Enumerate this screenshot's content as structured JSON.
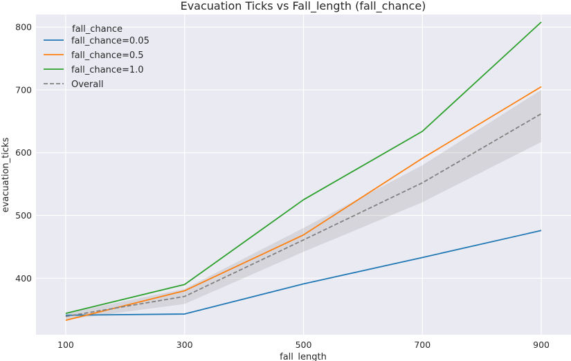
{
  "chart_data": {
    "type": "line",
    "title": "Evacuation Ticks vs Fall_length (fall_chance)",
    "xlabel": "fall_length",
    "ylabel": "evacuation_ticks",
    "x": [
      100,
      300,
      500,
      700,
      900
    ],
    "xlim": [
      50,
      950
    ],
    "ylim": [
      310,
      820
    ],
    "xticks": [
      "100",
      "300",
      "500",
      "700",
      "900"
    ],
    "yticks": [
      "400",
      "500",
      "600",
      "700",
      "800"
    ],
    "grid": true,
    "legend": {
      "title": "fall_chance",
      "placement": "top-left"
    },
    "series": [
      {
        "name": "fall_chance=0.05",
        "color": "#1f77b4",
        "dash": "solid",
        "values": [
          341,
          343,
          391,
          433,
          476
        ]
      },
      {
        "name": "fall_chance=0.5",
        "color": "#ff7f0e",
        "dash": "solid",
        "values": [
          333,
          380,
          469,
          591,
          705
        ]
      },
      {
        "name": "fall_chance=1.0",
        "color": "#2ca02c",
        "dash": "solid",
        "values": [
          344,
          390,
          525,
          634,
          808
        ]
      },
      {
        "name": "Overall",
        "color": "#808080",
        "dash": "dashed",
        "values": [
          339,
          371,
          461,
          552,
          662
        ],
        "ci_lower": [
          334,
          359,
          442,
          521,
          617
        ],
        "ci_upper": [
          344,
          383,
          480,
          580,
          700
        ]
      }
    ]
  }
}
